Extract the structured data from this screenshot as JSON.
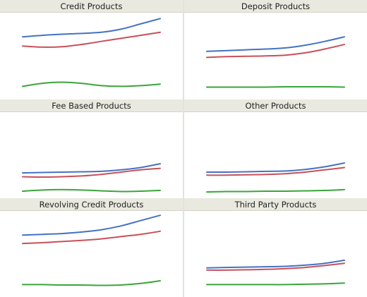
{
  "panels": [
    {
      "title": "Credit Products"
    },
    {
      "title": "Deposit Products"
    },
    {
      "title": "Fee Based Products"
    },
    {
      "title": "Other Products"
    },
    {
      "title": "Revolving Credit Products"
    },
    {
      "title": "Third Party Products"
    }
  ],
  "colors": {
    "series_blue": "#4472c4",
    "series_red": "#c8505a",
    "series_green": "#3aa53a",
    "header_bg": "#e9e9df"
  },
  "chart_data": [
    {
      "type": "line",
      "title": "Credit Products",
      "x": [
        0,
        1,
        2,
        3,
        4,
        5,
        6,
        7
      ],
      "ylim": [
        0,
        100
      ],
      "series": [
        {
          "color": "#4472c4",
          "values": [
            72,
            74,
            75.5,
            76.5,
            78,
            82,
            89,
            96
          ]
        },
        {
          "color": "#c8505a",
          "values": [
            60,
            58.5,
            59,
            62,
            66,
            70,
            74,
            78
          ]
        },
        {
          "color": "#3aa53a",
          "values": [
            7,
            11,
            12.5,
            11,
            8,
            7,
            8,
            10
          ]
        }
      ]
    },
    {
      "type": "line",
      "title": "Deposit Products",
      "x": [
        0,
        1,
        2,
        3,
        4,
        5,
        6,
        7
      ],
      "ylim": [
        0,
        100
      ],
      "series": [
        {
          "color": "#4472c4",
          "values": [
            53,
            54,
            55,
            56,
            57.5,
            61,
            66,
            72
          ]
        },
        {
          "color": "#c8505a",
          "values": [
            45,
            46,
            46.5,
            47,
            48,
            51,
            56,
            62
          ]
        },
        {
          "color": "#3aa53a",
          "values": [
            6,
            6,
            6,
            6,
            6.5,
            6.5,
            6.5,
            6
          ]
        }
      ]
    },
    {
      "type": "line",
      "title": "Fee Based Products",
      "x": [
        0,
        1,
        2,
        3,
        4,
        5,
        6,
        7
      ],
      "ylim": [
        0,
        100
      ],
      "series": [
        {
          "color": "#4472c4",
          "values": [
            24,
            24.5,
            25,
            25.5,
            26,
            28,
            31,
            36
          ]
        },
        {
          "color": "#c8505a",
          "values": [
            19,
            18.5,
            19,
            20,
            22,
            25,
            28,
            30
          ]
        },
        {
          "color": "#3aa53a",
          "values": [
            0,
            1.5,
            2,
            1.5,
            0.5,
            -0.5,
            0,
            1
          ]
        }
      ]
    },
    {
      "type": "line",
      "title": "Other Products",
      "x": [
        0,
        1,
        2,
        3,
        4,
        5,
        6,
        7
      ],
      "ylim": [
        0,
        100
      ],
      "series": [
        {
          "color": "#4472c4",
          "values": [
            25,
            25,
            25.5,
            26,
            26.5,
            28.5,
            32,
            37
          ]
        },
        {
          "color": "#c8505a",
          "values": [
            21,
            21,
            21.5,
            22,
            23,
            25,
            28,
            31
          ]
        },
        {
          "color": "#3aa53a",
          "values": [
            -1,
            -0.5,
            -0.5,
            0,
            0,
            0.5,
            1,
            2
          ]
        }
      ]
    },
    {
      "type": "line",
      "title": "Revolving Credit Products",
      "x": [
        0,
        1,
        2,
        3,
        4,
        5,
        6,
        7
      ],
      "ylim": [
        0,
        100
      ],
      "series": [
        {
          "color": "#4472c4",
          "values": [
            72,
            73,
            74,
            76,
            79,
            84,
            91,
            98
          ]
        },
        {
          "color": "#c8505a",
          "values": [
            61,
            62,
            63.5,
            65,
            67,
            70,
            73,
            77
          ]
        },
        {
          "color": "#3aa53a",
          "values": [
            7,
            7,
            6.5,
            6.5,
            6,
            6.5,
            8.5,
            12
          ]
        }
      ]
    },
    {
      "type": "line",
      "title": "Third Party Products",
      "x": [
        0,
        1,
        2,
        3,
        4,
        5,
        6,
        7
      ],
      "ylim": [
        0,
        100
      ],
      "series": [
        {
          "color": "#4472c4",
          "values": [
            29,
            29.5,
            30,
            30.5,
            31,
            32.5,
            35,
            39
          ]
        },
        {
          "color": "#c8505a",
          "values": [
            26,
            26,
            26.5,
            27,
            28,
            29.5,
            32,
            35
          ]
        },
        {
          "color": "#3aa53a",
          "values": [
            7,
            7,
            7,
            7,
            7,
            7.5,
            8,
            9
          ]
        }
      ]
    }
  ]
}
